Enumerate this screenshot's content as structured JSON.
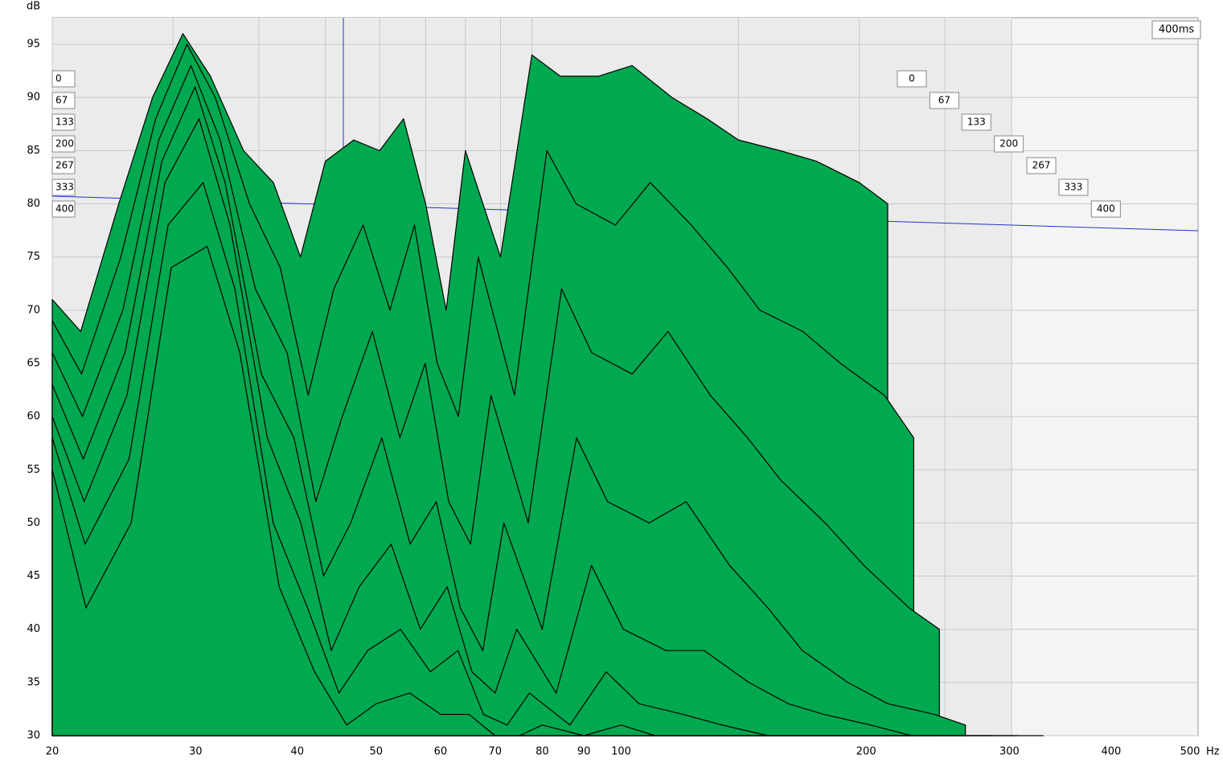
{
  "chart_data": {
    "type": "waterfall",
    "y_label": "dB",
    "x_label": "Hz",
    "time_label": "400ms",
    "color": "#00a84f",
    "log_x": true,
    "grid": true,
    "xlim": [
      20,
      500
    ],
    "xticks": [
      20,
      30,
      40,
      50,
      60,
      70,
      80,
      90,
      100,
      200,
      300,
      400,
      500
    ],
    "ylim": [
      30,
      97.5
    ],
    "yticks": [
      30,
      35,
      40,
      45,
      50,
      55,
      60,
      65,
      70,
      75,
      80,
      85,
      90,
      95
    ],
    "zlim": [
      0,
      400
    ],
    "zticks": [
      0,
      67,
      133,
      200,
      267,
      333,
      400
    ],
    "x": [
      20,
      22,
      25,
      28,
      31,
      34,
      38,
      42,
      46,
      50,
      55,
      60,
      65,
      70,
      75,
      80,
      90,
      100,
      110,
      125,
      140,
      160,
      180,
      200,
      230,
      260,
      300,
      330
    ],
    "series": [
      {
        "values": [
          71,
          68,
          80,
          90,
          96,
          92,
          85,
          82,
          75,
          84,
          86,
          85,
          88,
          80,
          70,
          85,
          75,
          94,
          92,
          92,
          93,
          90,
          88,
          86,
          85,
          84,
          82,
          80
        ]
      },
      {
        "values": [
          69,
          64,
          75,
          88,
          95,
          90,
          80,
          74,
          62,
          72,
          78,
          70,
          78,
          65,
          60,
          75,
          62,
          85,
          80,
          78,
          82,
          78,
          74,
          70,
          68,
          65,
          62,
          58
        ]
      },
      {
        "values": [
          66,
          60,
          70,
          86,
          93,
          86,
          72,
          66,
          52,
          60,
          68,
          58,
          65,
          52,
          48,
          62,
          50,
          72,
          66,
          64,
          68,
          62,
          58,
          54,
          50,
          46,
          42,
          40
        ]
      },
      {
        "values": [
          63,
          56,
          66,
          84,
          91,
          82,
          64,
          58,
          45,
          50,
          58,
          48,
          52,
          42,
          38,
          50,
          40,
          58,
          52,
          50,
          52,
          46,
          42,
          38,
          35,
          33,
          32,
          31
        ]
      },
      {
        "values": [
          60,
          52,
          62,
          82,
          88,
          78,
          58,
          50,
          38,
          44,
          48,
          40,
          44,
          36,
          34,
          40,
          34,
          46,
          40,
          38,
          38,
          35,
          33,
          32,
          31,
          30,
          30,
          30
        ]
      },
      {
        "values": [
          58,
          48,
          56,
          78,
          82,
          72,
          50,
          42,
          34,
          38,
          40,
          36,
          38,
          32,
          31,
          34,
          31,
          36,
          33,
          32,
          31,
          30,
          30,
          30,
          30,
          30,
          30,
          30
        ]
      },
      {
        "values": [
          55,
          42,
          50,
          74,
          76,
          66,
          44,
          36,
          31,
          33,
          34,
          32,
          32,
          30,
          30,
          31,
          30,
          31,
          30,
          30,
          30,
          30,
          30,
          30,
          30,
          30,
          30,
          30
        ]
      }
    ]
  }
}
